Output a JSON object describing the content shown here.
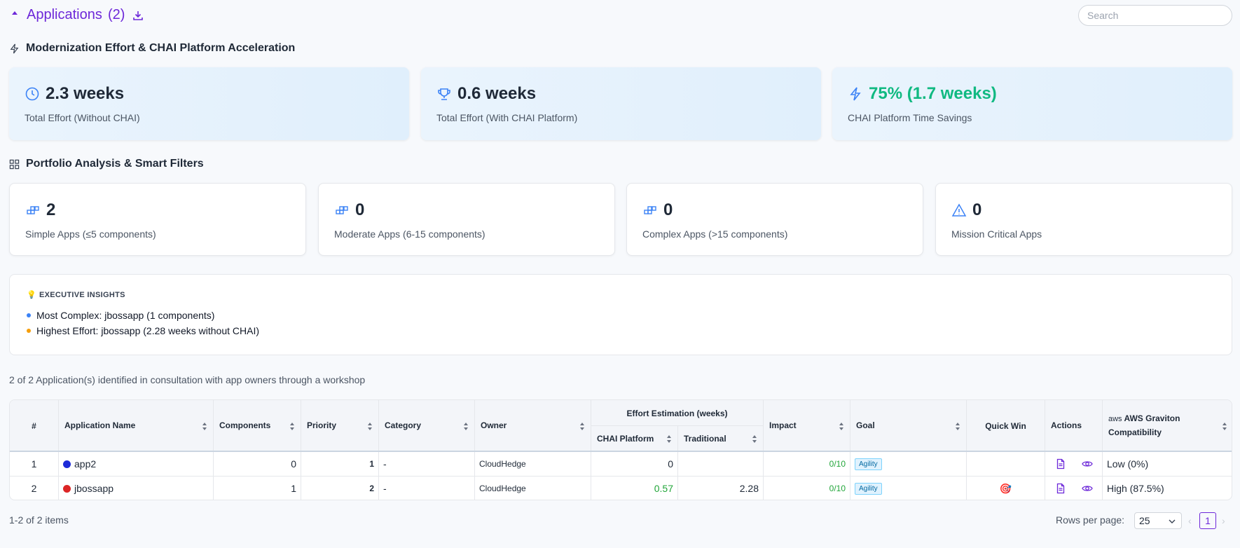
{
  "header": {
    "title": "Applications",
    "count": "(2)",
    "search_placeholder": "Search"
  },
  "modernization": {
    "section_title": "Modernization Effort & CHAI Platform Acceleration",
    "cards": [
      {
        "value": "2.3 weeks",
        "label": "Total Effort (Without CHAI)",
        "icon": "clock-icon"
      },
      {
        "value": "0.6 weeks",
        "label": "Total Effort (With CHAI Platform)",
        "icon": "trophy-icon"
      },
      {
        "value": "75% (1.7 weeks)",
        "label": "CHAI Platform Time Savings",
        "icon": "lightning-icon",
        "color": "#10b981"
      }
    ]
  },
  "portfolio": {
    "section_title": "Portfolio Analysis & Smart Filters",
    "cards": [
      {
        "value": "2",
        "label": "Simple Apps (≤5 components)",
        "icon": "blocks-icon"
      },
      {
        "value": "0",
        "label": "Moderate Apps (6-15 components)",
        "icon": "blocks-icon"
      },
      {
        "value": "0",
        "label": "Complex Apps (>15 components)",
        "icon": "blocks-icon"
      },
      {
        "value": "0",
        "label": "Mission Critical Apps",
        "icon": "warning-triangle-icon"
      }
    ]
  },
  "insights": {
    "title": "EXECUTIVE INSIGHTS",
    "items": [
      {
        "text": "Most Complex: jbossapp (1 components)",
        "dot_color": "#3b82f6"
      },
      {
        "text": "Highest Effort: jbossapp (2.28 weeks without CHAI)",
        "dot_color": "#f59e0b"
      }
    ]
  },
  "caption": "2 of 2 Application(s) identified in consultation with app owners through a workshop",
  "table": {
    "headers": {
      "num": "#",
      "name": "Application Name",
      "components": "Components",
      "priority": "Priority",
      "category": "Category",
      "owner": "Owner",
      "effort_group": "Effort Estimation (weeks)",
      "chai": "CHAI Platform",
      "traditional": "Traditional",
      "impact": "Impact",
      "goal": "Goal",
      "quickwin": "Quick Win",
      "actions": "Actions",
      "graviton_aws": "aws",
      "graviton": "AWS Graviton Compatibility"
    },
    "rows": [
      {
        "num": "1",
        "name": "app2",
        "dot_color": "#1d2bd8",
        "components": "0",
        "priority": "1",
        "category": "-",
        "owner": "CloudHedge",
        "chai": "0",
        "traditional": "",
        "impact": "0/10",
        "goal": "Agility",
        "quickwin": "",
        "graviton": "Low (0%)"
      },
      {
        "num": "2",
        "name": "jbossapp",
        "dot_color": "#dc2626",
        "components": "1",
        "priority": "2",
        "category": "-",
        "owner": "CloudHedge",
        "chai": "0.57",
        "traditional": "2.28",
        "impact": "0/10",
        "goal": "Agility",
        "quickwin": "🎯",
        "graviton": "High (87.5%)"
      }
    ]
  },
  "footer": {
    "items": "1-2 of 2 items",
    "rows_per_page_label": "Rows per page:",
    "rows_per_page": "25",
    "prev": "‹",
    "current_page": "1",
    "next": "›"
  },
  "colors": {
    "accent": "#6d28d9",
    "green": "#10b981",
    "icon_blue": "#3b82f6"
  }
}
